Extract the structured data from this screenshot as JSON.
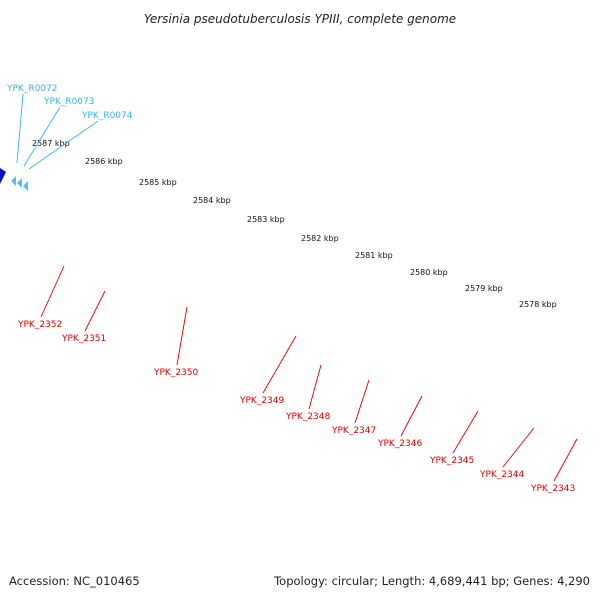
{
  "title": "Yersinia pseudotuberculosis YPIII, complete genome",
  "footer": {
    "accession": "Accession: NC_010465",
    "topology": "Topology: circular; Length: 4,689,441 bp; Genes: 4,290"
  },
  "scale_labels": [
    "2587 kbp",
    "2586 kbp",
    "2585 kbp",
    "2584 kbp",
    "2583 kbp",
    "2582 kbp",
    "2581 kbp",
    "2580 kbp",
    "2579 kbp",
    "2578 kbp"
  ],
  "rna_genes": [
    "YPK_R0072",
    "YPK_R0073",
    "YPK_R0074"
  ],
  "protein_genes": [
    "YPK_2352",
    "YPK_2351",
    "YPK_2350",
    "YPK_2349",
    "YPK_2348",
    "YPK_2347",
    "YPK_2346",
    "YPK_2345",
    "YPK_2344",
    "YPK_2343"
  ],
  "colors": {
    "gene": "#ff0000",
    "gene_dark": "#b80000",
    "gene_label": "#e00000",
    "rna_label": "#33b5e5",
    "rna_marker": "#4fc3f7",
    "backbone": "#888888",
    "tick": "#1e8c1e",
    "orf_light": "#bdbdbd",
    "orf_dark": "#595959",
    "purple_feature": "#6a5acd",
    "blue_feature": "#0011cc"
  }
}
